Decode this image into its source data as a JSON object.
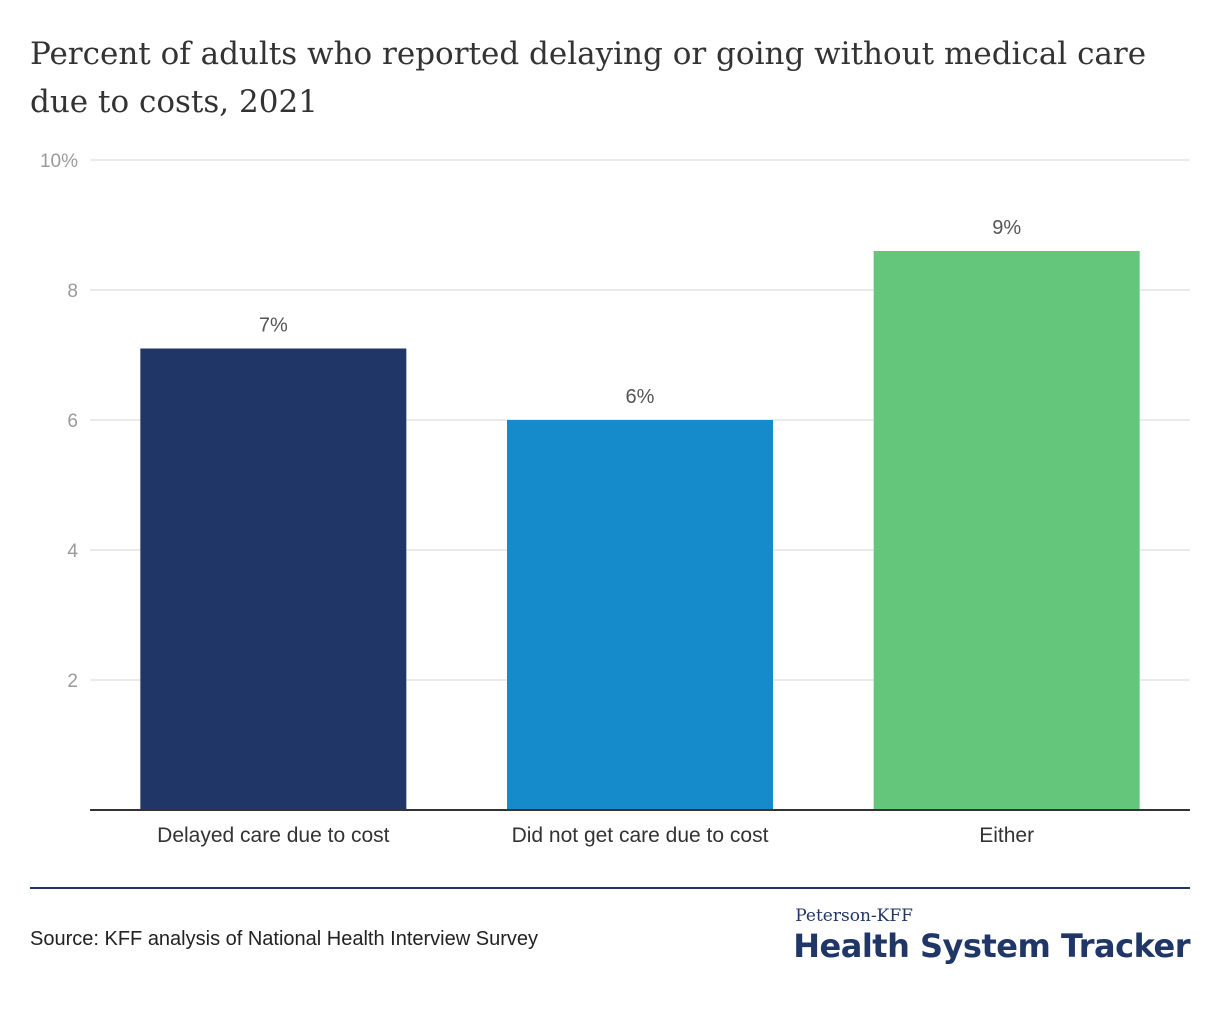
{
  "title": "Percent of adults who reported delaying or going without medical care due to costs, 2021",
  "chart_data": {
    "type": "bar",
    "categories": [
      "Delayed care due to cost",
      "Did not get care due to cost",
      "Either"
    ],
    "values": [
      7.1,
      6.0,
      8.6
    ],
    "data_labels": [
      "7%",
      "6%",
      "9%"
    ],
    "colors": [
      "#1f3666",
      "#168bcb",
      "#64c67b"
    ],
    "ylim": [
      0,
      10
    ],
    "yticks": [
      {
        "value": 2,
        "label": "2"
      },
      {
        "value": 4,
        "label": "4"
      },
      {
        "value": 6,
        "label": "6"
      },
      {
        "value": 8,
        "label": "8"
      },
      {
        "value": 10,
        "label": "10%"
      }
    ],
    "grid": true,
    "xlabel": "",
    "ylabel": ""
  },
  "footer": {
    "source": "Source: KFF analysis of National Health Interview Survey",
    "logo_top": "Peterson-KFF",
    "logo_main": "Health System Tracker"
  }
}
